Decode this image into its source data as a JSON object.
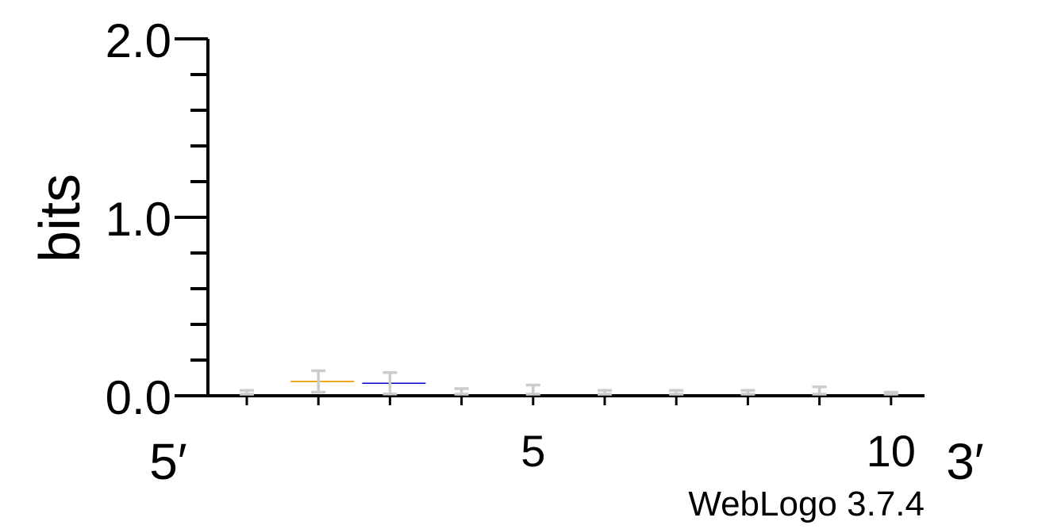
{
  "chart_data": {
    "type": "sequence-logo",
    "ylabel": "bits",
    "ylim": [
      0,
      2.0
    ],
    "y_major_ticks": [
      0.0,
      1.0,
      2.0
    ],
    "y_tick_labels": [
      "0.0",
      "1.0",
      "2.0"
    ],
    "y_minor_step": 0.2,
    "positions": [
      1,
      2,
      3,
      4,
      5,
      6,
      7,
      8,
      9,
      10
    ],
    "x_tick_labels": [
      {
        "position": 5,
        "label": "5"
      },
      {
        "position": 10,
        "label": "10"
      }
    ],
    "five_prime_label": "5′",
    "three_prime_label": "3′",
    "stacks": [
      {
        "position": 1,
        "height": 0.0,
        "error": 0.03,
        "letters": []
      },
      {
        "position": 2,
        "height": 0.08,
        "error": 0.06,
        "letters": [
          {
            "color": "#f0a000",
            "height": 0.008
          }
        ]
      },
      {
        "position": 3,
        "height": 0.07,
        "error": 0.06,
        "letters": [
          {
            "color": "#0000cc",
            "height": 0.006
          }
        ]
      },
      {
        "position": 4,
        "height": 0.0,
        "error": 0.04,
        "letters": []
      },
      {
        "position": 5,
        "height": 0.0,
        "error": 0.06,
        "letters": []
      },
      {
        "position": 6,
        "height": 0.0,
        "error": 0.03,
        "letters": []
      },
      {
        "position": 7,
        "height": 0.0,
        "error": 0.03,
        "letters": []
      },
      {
        "position": 8,
        "height": 0.0,
        "error": 0.03,
        "letters": []
      },
      {
        "position": 9,
        "height": 0.0,
        "error": 0.05,
        "letters": []
      },
      {
        "position": 10,
        "height": 0.0,
        "error": 0.02,
        "letters": []
      }
    ],
    "error_bar_color": "#cccccc",
    "axis_color": "#000000"
  },
  "footer": {
    "credit": "WebLogo 3.7.4"
  }
}
